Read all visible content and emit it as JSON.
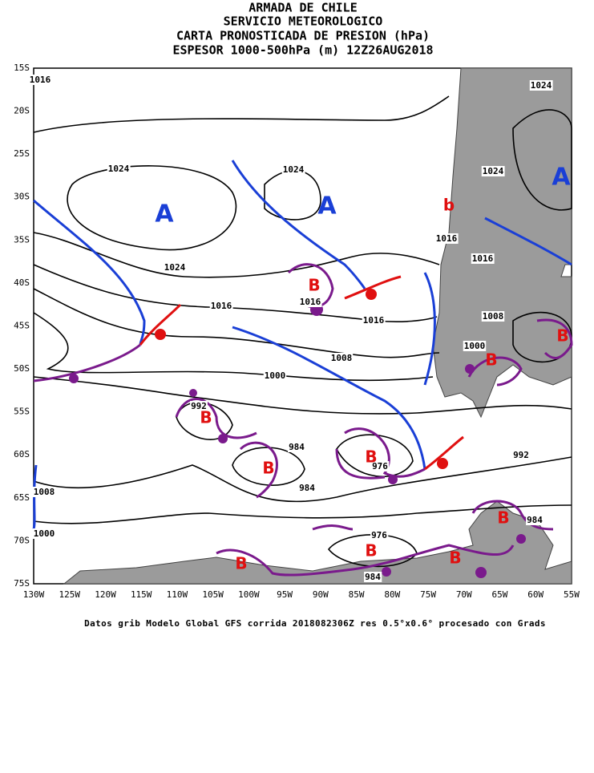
{
  "header": {
    "lines": [
      "ARMADA DE CHILE",
      "SERVICIO METEOROLOGICO",
      "CARTA PRONOSTICADA DE PRESION (hPa)",
      "ESPESOR 1000-500hPa (m) 12Z26AUG2018"
    ]
  },
  "map": {
    "lat_labels": [
      "15S",
      "20S",
      "25S",
      "30S",
      "35S",
      "40S",
      "45S",
      "50S",
      "55S",
      "60S",
      "65S",
      "70S",
      "75S"
    ],
    "lon_labels": [
      "130W",
      "125W",
      "120W",
      "115W",
      "110W",
      "105W",
      "100W",
      "95W",
      "90W",
      "85W",
      "80W",
      "75W",
      "70W",
      "65W",
      "60W",
      "55W"
    ],
    "isobar_labels": [
      "1016",
      "1024",
      "1024",
      "1024",
      "1024",
      "1016",
      "1016",
      "1024",
      "1016",
      "1016",
      "1016",
      "1008",
      "1008",
      "1000",
      "1000",
      "992",
      "984",
      "976",
      "992",
      "984",
      "1008",
      "1000",
      "976",
      "984",
      "984"
    ],
    "high_labels": [
      "A",
      "A",
      "A"
    ],
    "low_labels": [
      "B",
      "B",
      "B",
      "B",
      "B",
      "B",
      "B",
      "B",
      "B",
      "B"
    ],
    "minor_low_label": "b"
  },
  "footer": "Datos grib Modelo Global GFS corrida 2018082306Z res 0.5°x0.6° procesado con Grads"
}
